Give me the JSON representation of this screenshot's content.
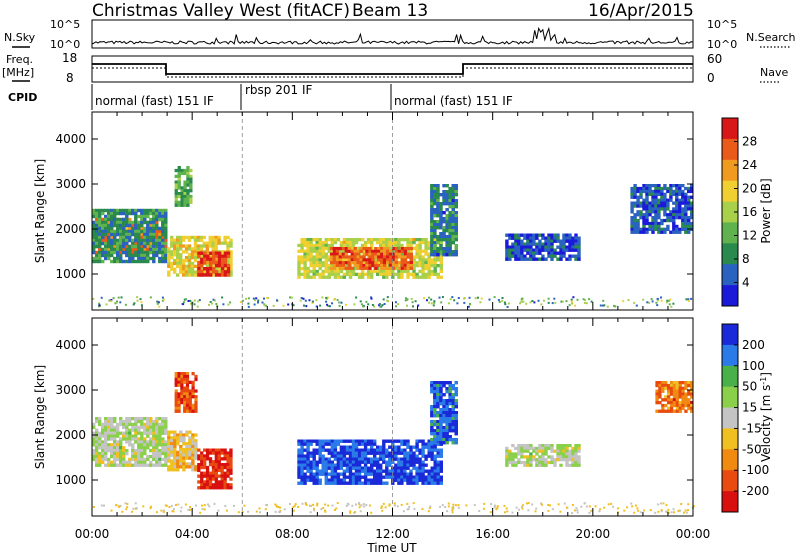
{
  "header": {
    "title": "Christmas Valley West (fitACF)",
    "beam": "Beam 13",
    "date": "16/Apr/2015"
  },
  "top_panels": {
    "nsky_label": "N.Sky",
    "nsearch_label": "N.Search",
    "count_ticks": [
      "10^5",
      "10^0"
    ],
    "freq_label": "Freq.",
    "freq_unit": "[MHz]",
    "freq_ticks": [
      "18",
      "8"
    ],
    "nave_label": "Nave",
    "nave_ticks": [
      "60",
      "0"
    ],
    "cpid_label": "CPID",
    "cpid_modes": [
      {
        "label": "normal (fast) 151 IF",
        "start_h": 0,
        "end_h": 6
      },
      {
        "label": "rbsp 201 IF",
        "start_h": 6,
        "end_h": 12
      },
      {
        "label": "normal (fast) 151 IF",
        "start_h": 12,
        "end_h": 24
      }
    ]
  },
  "chart_data": [
    {
      "type": "heatmap",
      "title": "",
      "xlabel": "Time UT",
      "ylabel": "Slant Range [km]",
      "xlim": [
        0,
        24
      ],
      "ylim": [
        200,
        4600
      ],
      "x_ticks": [
        "00:00",
        "04:00",
        "08:00",
        "12:00",
        "16:00",
        "20:00",
        "00:00"
      ],
      "y_ticks": [
        "1000",
        "2000",
        "3000",
        "4000"
      ],
      "colorbar": {
        "label": "Power [dB]",
        "ticks": [
          "4",
          "8",
          "12",
          "16",
          "20",
          "24",
          "28"
        ],
        "colors": [
          "#1a1ad8",
          "#2a62c0",
          "#2a8a4e",
          "#5fb24e",
          "#a8d04a",
          "#f0d030",
          "#f09a20",
          "#ea5a18",
          "#d81818"
        ]
      },
      "patches": [
        {
          "t0": 0.0,
          "t1": 3.0,
          "r0": 1450,
          "r1": 2250,
          "level": 0.8
        },
        {
          "t0": 0.0,
          "t1": 3.0,
          "r0": 1250,
          "r1": 2450,
          "level": 0.25
        },
        {
          "t0": 3.0,
          "t1": 5.6,
          "r0": 950,
          "r1": 1850,
          "level": 0.6
        },
        {
          "t0": 4.2,
          "t1": 5.5,
          "r0": 950,
          "r1": 1500,
          "level": 0.95
        },
        {
          "t0": 3.3,
          "t1": 4.0,
          "r0": 2500,
          "r1": 3400,
          "level": 0.35
        },
        {
          "t0": 8.2,
          "t1": 14.0,
          "r0": 900,
          "r1": 1800,
          "level": 0.55
        },
        {
          "t0": 9.5,
          "t1": 12.8,
          "r0": 1100,
          "r1": 1600,
          "level": 0.85
        },
        {
          "t0": 13.5,
          "t1": 14.6,
          "r0": 1400,
          "r1": 3000,
          "level": 0.2
        },
        {
          "t0": 16.5,
          "t1": 19.5,
          "r0": 1300,
          "r1": 1900,
          "level": 0.1
        },
        {
          "t0": 21.5,
          "t1": 24.0,
          "r0": 1900,
          "r1": 3000,
          "level": 0.1
        }
      ]
    },
    {
      "type": "heatmap",
      "title": "",
      "xlabel": "Time UT",
      "ylabel": "Slant Range [km]",
      "xlim": [
        0,
        24
      ],
      "ylim": [
        200,
        4600
      ],
      "x_ticks": [
        "00:00",
        "04:00",
        "08:00",
        "12:00",
        "16:00",
        "20:00",
        "00:00"
      ],
      "y_ticks": [
        "1000",
        "2000",
        "3000",
        "4000"
      ],
      "colorbar": {
        "label": "Velocity [m s^-1]",
        "ticks": [
          "200",
          "100",
          "50",
          "15",
          "-15",
          "-50",
          "-100",
          "-200"
        ],
        "colors": [
          "#1a2ad8",
          "#2a7ae8",
          "#4ab04a",
          "#8ad04a",
          "#c4c4c4",
          "#f0c020",
          "#f08a10",
          "#e84a10",
          "#d81010"
        ]
      },
      "patches": [
        {
          "t0": 0.0,
          "t1": 3.0,
          "r0": 1300,
          "r1": 2400,
          "level": 0.45
        },
        {
          "t0": 3.0,
          "t1": 4.2,
          "r0": 1200,
          "r1": 2100,
          "level": 0.62
        },
        {
          "t0": 4.2,
          "t1": 5.6,
          "r0": 800,
          "r1": 1700,
          "level": 0.97
        },
        {
          "t0": 3.3,
          "t1": 4.2,
          "r0": 2500,
          "r1": 3400,
          "level": 0.85
        },
        {
          "t0": 8.2,
          "t1": 14.0,
          "r0": 900,
          "r1": 1900,
          "level": 0.03
        },
        {
          "t0": 13.5,
          "t1": 14.6,
          "r0": 1800,
          "r1": 3200,
          "level": 0.08
        },
        {
          "t0": 16.5,
          "t1": 19.5,
          "r0": 1300,
          "r1": 1800,
          "level": 0.45
        },
        {
          "t0": 22.5,
          "t1": 24.0,
          "r0": 2500,
          "r1": 3200,
          "level": 0.8
        }
      ]
    }
  ]
}
